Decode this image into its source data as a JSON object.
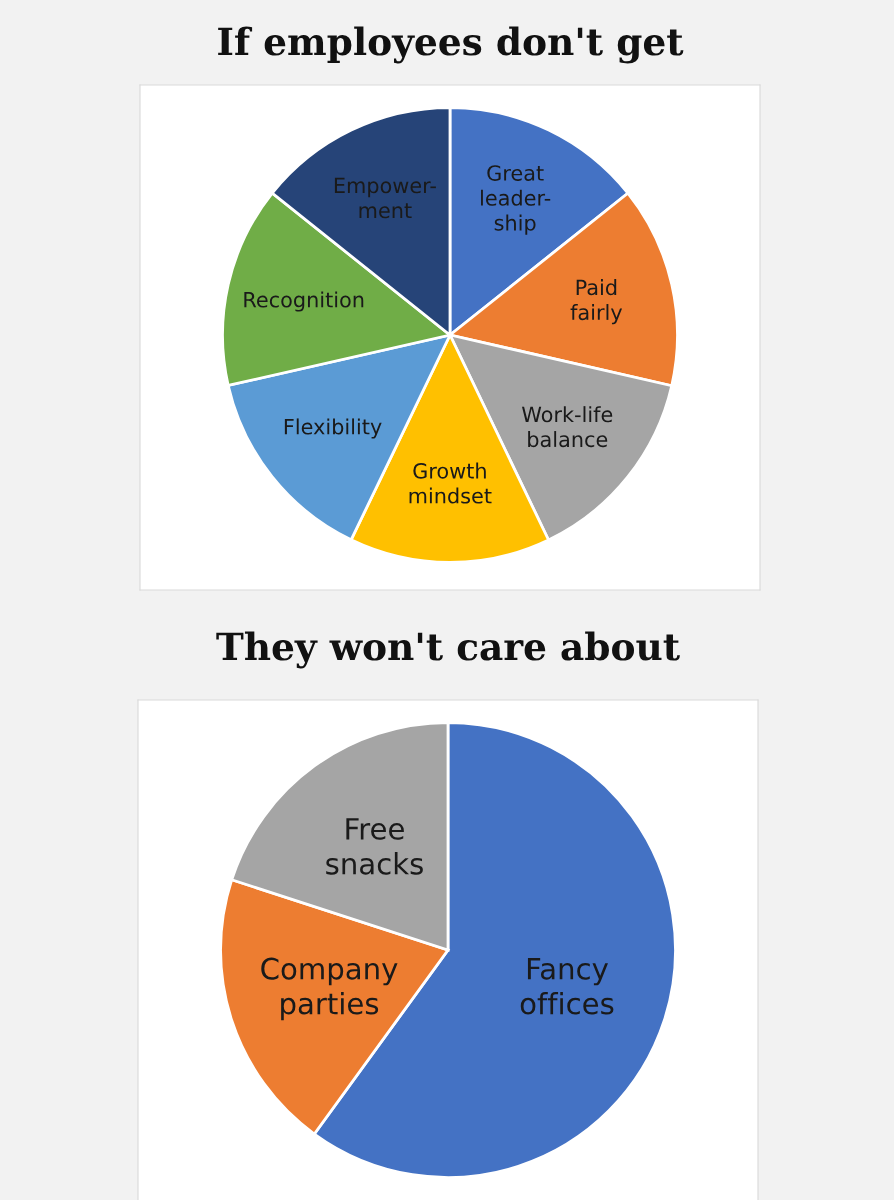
{
  "chart_data": [
    {
      "type": "pie",
      "title": "If employees don't get",
      "categories": [
        "Great\nleader-\nship",
        "Paid\nfairly",
        "Work-life\nbalance",
        "Growth\nmindset",
        "Flexibility",
        "Recognition",
        "Empower-\nment"
      ],
      "values": [
        14.29,
        14.29,
        14.29,
        14.29,
        14.28,
        14.28,
        14.28
      ],
      "colors": [
        "#4472c4",
        "#ed7d31",
        "#a5a5a5",
        "#ffc000",
        "#5b9bd5",
        "#70ad47",
        "#264478"
      ]
    },
    {
      "type": "pie",
      "title": "They won't care about",
      "categories": [
        "Fancy\noffices",
        "Company\nparties",
        "Free\nsnacks"
      ],
      "values": [
        60,
        20,
        20
      ],
      "colors": [
        "#4472c4",
        "#ed7d31",
        "#a5a5a5"
      ]
    }
  ]
}
